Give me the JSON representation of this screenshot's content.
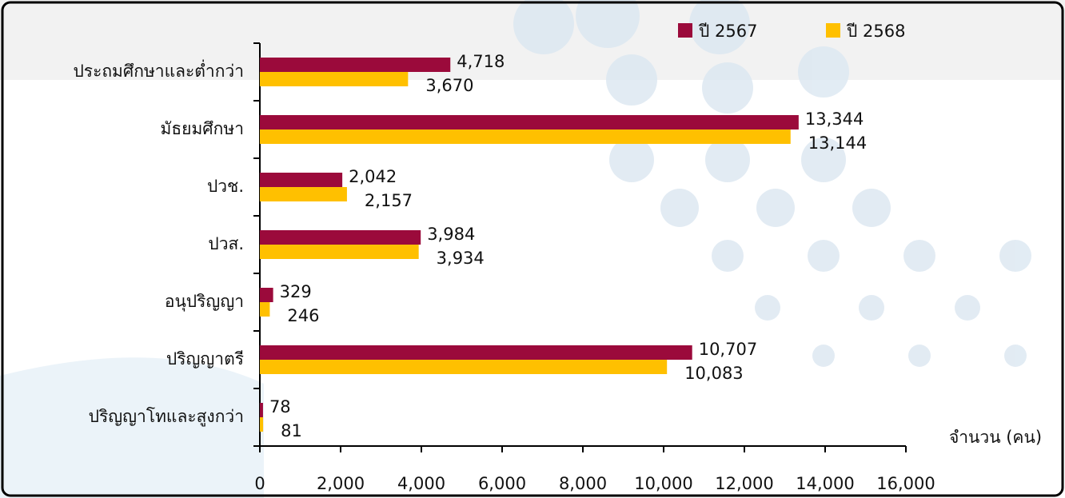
{
  "chart_data": {
    "type": "hbar",
    "categories": [
      "ประถมศึกษาและต่ำกว่า",
      "มัธยมศึกษา",
      "ปวช.",
      "ปวส.",
      "อนุปริญญา",
      "ปริญญาตรี",
      "ปริญญาโทและสูงกว่า"
    ],
    "series": [
      {
        "name": "ปี 2567",
        "color": "#9b0a3b",
        "values": [
          4718,
          13344,
          2042,
          3984,
          329,
          10707,
          78
        ],
        "value_labels": [
          "4,718",
          "13,344",
          "2,042",
          "3,984",
          "329",
          "10,707",
          "78"
        ]
      },
      {
        "name": "ปี 2568",
        "color": "#ffc000",
        "values": [
          3670,
          13144,
          2157,
          3934,
          246,
          10083,
          81
        ],
        "value_labels": [
          "3,670",
          "13,144",
          "2,157",
          "3,934",
          "246",
          "10,083",
          "81"
        ]
      }
    ],
    "xlabel": "จำนวน (คน)",
    "xlim": [
      0,
      16000
    ],
    "xticks": [
      0,
      {
        "value": 2000,
        "label": "2,000"
      },
      {
        "value": 4000,
        "label": "4,000"
      },
      {
        "value": 6000,
        "label": "6,000"
      },
      {
        "value": 8000,
        "label": "8,000"
      },
      {
        "value": 10000,
        "label": "10,000"
      },
      {
        "value": 12000,
        "label": "12,000"
      },
      {
        "value": 14000,
        "label": "14,000"
      },
      {
        "value": 16000,
        "label": "16,000"
      }
    ],
    "legend": "top-right"
  }
}
